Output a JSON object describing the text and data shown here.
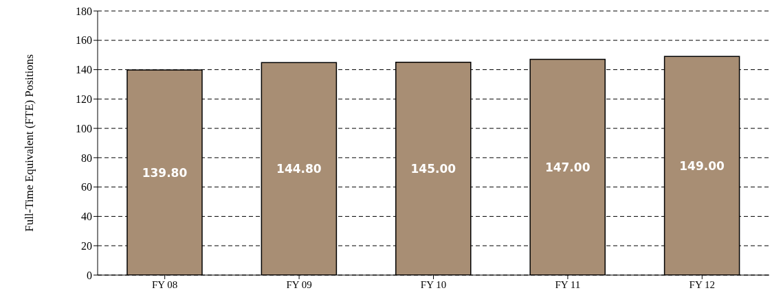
{
  "chart_data": {
    "type": "bar",
    "ylabel": "Full-Time Equivalent (FTE) Positions",
    "categories": [
      "FY 08",
      "FY 09",
      "FY 10",
      "FY 11",
      "FY 12"
    ],
    "values": [
      139.8,
      144.8,
      145,
      147,
      149
    ],
    "value_labels": [
      "139.80",
      "144.80",
      "145.00",
      "147.00",
      "149.00"
    ],
    "color": "#a88e74",
    "ylim": [
      0,
      180
    ],
    "yticks": [
      0,
      20,
      40,
      60,
      80,
      100,
      120,
      140,
      160,
      180
    ],
    "grid": "y"
  }
}
